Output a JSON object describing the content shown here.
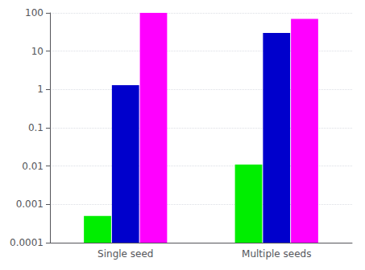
{
  "chart_data": {
    "type": "bar",
    "categories": [
      "Single seed",
      "Multiple seeds"
    ],
    "series": [
      {
        "color": "#00ee00",
        "values": [
          0.0005,
          0.011
        ]
      },
      {
        "color": "#0000cc",
        "values": [
          1.3,
          30.0
        ]
      },
      {
        "color": "#ff00ff",
        "values": [
          100.0,
          70.0
        ]
      }
    ],
    "log": "y",
    "ylim": [
      0.0001,
      100
    ],
    "yticks": [
      0.0001,
      0.001,
      0.01,
      0.1,
      1,
      10,
      100
    ],
    "grid": true
  }
}
